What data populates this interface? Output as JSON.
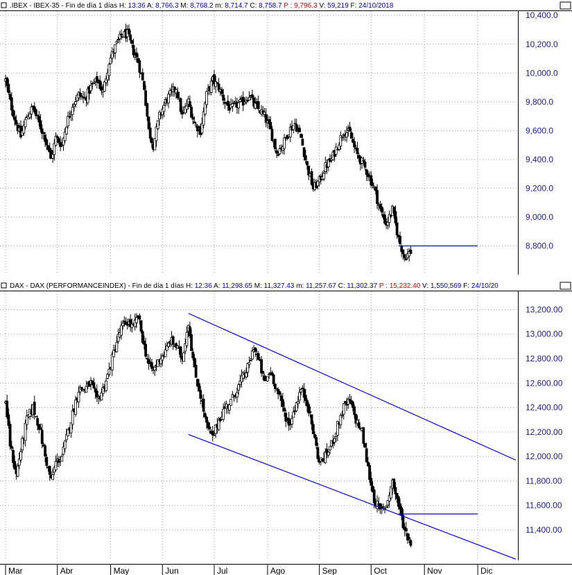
{
  "colors": {
    "background": "#ffffff",
    "candle": "#000000",
    "trendline": "#0000cc",
    "grid": "#9a9a9a",
    "axis_text": "#1a1a8a",
    "header_label": "#000000",
    "header_value": "#0000aa",
    "header_highlight": "#d40000"
  },
  "chart_data": [
    {
      "type": "candlestick",
      "name": "IBEX",
      "header": {
        "title": ".IBEX - IBEX-35 - Fin de día 1 días",
        "fields": [
          {
            "label": "H:",
            "value": "13:36"
          },
          {
            "label": "A:",
            "value": "8,766.3"
          },
          {
            "label": "M:",
            "value": "8,768.2"
          },
          {
            "label": "m:",
            "value": "8,714.7"
          },
          {
            "label": "C:",
            "value": "8,758.7"
          },
          {
            "label": "P :",
            "value": "9,796.3",
            "highlight": true
          },
          {
            "label": "V:",
            "value": "59,219"
          },
          {
            "label": "F:",
            "value": "24/10/2018"
          }
        ]
      },
      "yticks": [
        "10,400.0",
        "10,200.0",
        "10,000.0",
        "9,800.0",
        "9,600.0",
        "9,400.0",
        "9,200.0",
        "9,000.0",
        "8,800.0"
      ],
      "ylim": [
        8600,
        10430
      ],
      "grid": true,
      "close_path": [
        [
          0,
          9950
        ],
        [
          3,
          9800
        ],
        [
          7,
          9650
        ],
        [
          10,
          9560
        ],
        [
          14,
          9700
        ],
        [
          18,
          9760
        ],
        [
          22,
          9650
        ],
        [
          26,
          9550
        ],
        [
          30,
          9400
        ],
        [
          33,
          9550
        ],
        [
          37,
          9500
        ],
        [
          40,
          9650
        ],
        [
          44,
          9780
        ],
        [
          48,
          9850
        ],
        [
          52,
          9820
        ],
        [
          56,
          9900
        ],
        [
          60,
          9950
        ],
        [
          64,
          9870
        ],
        [
          68,
          10080
        ],
        [
          72,
          10180
        ],
        [
          76,
          10260
        ],
        [
          80,
          10270
        ],
        [
          84,
          10150
        ],
        [
          87,
          10080
        ],
        [
          91,
          9900
        ],
        [
          94,
          9600
        ],
        [
          97,
          9500
        ],
        [
          101,
          9700
        ],
        [
          105,
          9800
        ],
        [
          108,
          9850
        ],
        [
          112,
          9900
        ],
        [
          116,
          9700
        ],
        [
          120,
          9800
        ],
        [
          124,
          9650
        ],
        [
          128,
          9600
        ],
        [
          132,
          9850
        ],
        [
          136,
          9950
        ],
        [
          140,
          9900
        ],
        [
          144,
          9800
        ],
        [
          148,
          9750
        ],
        [
          152,
          9780
        ],
        [
          156,
          9800
        ],
        [
          160,
          9850
        ],
        [
          163,
          9780
        ],
        [
          167,
          9740
        ],
        [
          170,
          9700
        ],
        [
          174,
          9600
        ],
        [
          178,
          9450
        ],
        [
          182,
          9500
        ],
        [
          186,
          9600
        ],
        [
          190,
          9650
        ],
        [
          194,
          9550
        ],
        [
          198,
          9350
        ],
        [
          202,
          9200
        ],
        [
          206,
          9250
        ],
        [
          210,
          9350
        ],
        [
          214,
          9400
        ],
        [
          218,
          9500
        ],
        [
          222,
          9600
        ],
        [
          226,
          9580
        ],
        [
          230,
          9450
        ],
        [
          234,
          9380
        ],
        [
          238,
          9300
        ],
        [
          242,
          9200
        ],
        [
          246,
          9050
        ],
        [
          250,
          8950
        ],
        [
          254,
          9050
        ],
        [
          258,
          8850
        ],
        [
          262,
          8720
        ],
        [
          266,
          8760
        ]
      ],
      "hline": {
        "value": 8800,
        "from_x": 258,
        "to_x": 310
      },
      "trendlines": []
    },
    {
      "type": "candlestick",
      "name": "DAX",
      "header": {
        "title": "DAX - DAX (PERFORMANCEINDEX) - Fin de día 1 días",
        "fields": [
          {
            "label": "H:",
            "value": "12:36"
          },
          {
            "label": "A:",
            "value": "11,298.65"
          },
          {
            "label": "M:",
            "value": "11,327.43"
          },
          {
            "label": "m:",
            "value": "11,257.67"
          },
          {
            "label": "C:",
            "value": "11,302.37"
          },
          {
            "label": "P :",
            "value": "15,232.40",
            "highlight": true
          },
          {
            "label": "V:",
            "value": "1,550,569"
          },
          {
            "label": "F:",
            "value": "24/10/20"
          }
        ]
      },
      "yticks": [
        "13,200.00",
        "13,000.00",
        "12,800.00",
        "12,600.00",
        "12,400.00",
        "12,200.00",
        "12,000.00",
        "11,800.00",
        "11,600.00",
        "11,400.00"
      ],
      "ylim": [
        11150,
        13350
      ],
      "grid": true,
      "close_path": [
        [
          0,
          12450
        ],
        [
          3,
          12100
        ],
        [
          7,
          11850
        ],
        [
          10,
          12050
        ],
        [
          14,
          12300
        ],
        [
          18,
          12400
        ],
        [
          22,
          12250
        ],
        [
          26,
          12000
        ],
        [
          30,
          11800
        ],
        [
          33,
          11950
        ],
        [
          37,
          12000
        ],
        [
          40,
          12150
        ],
        [
          44,
          12350
        ],
        [
          48,
          12550
        ],
        [
          52,
          12550
        ],
        [
          56,
          12600
        ],
        [
          60,
          12450
        ],
        [
          64,
          12550
        ],
        [
          68,
          12700
        ],
        [
          72,
          12900
        ],
        [
          76,
          13050
        ],
        [
          80,
          13100
        ],
        [
          84,
          13050
        ],
        [
          87,
          13150
        ],
        [
          91,
          12900
        ],
        [
          94,
          12750
        ],
        [
          97,
          12700
        ],
        [
          101,
          12800
        ],
        [
          105,
          12850
        ],
        [
          108,
          12950
        ],
        [
          112,
          12900
        ],
        [
          116,
          12800
        ],
        [
          120,
          13100
        ],
        [
          124,
          12700
        ],
        [
          128,
          12500
        ],
        [
          132,
          12250
        ],
        [
          136,
          12150
        ],
        [
          140,
          12300
        ],
        [
          144,
          12400
        ],
        [
          148,
          12450
        ],
        [
          152,
          12550
        ],
        [
          156,
          12650
        ],
        [
          160,
          12750
        ],
        [
          163,
          12900
        ],
        [
          167,
          12750
        ],
        [
          170,
          12600
        ],
        [
          174,
          12700
        ],
        [
          178,
          12550
        ],
        [
          182,
          12400
        ],
        [
          186,
          12250
        ],
        [
          190,
          12400
        ],
        [
          194,
          12550
        ],
        [
          198,
          12450
        ],
        [
          202,
          12200
        ],
        [
          206,
          11950
        ],
        [
          210,
          12000
        ],
        [
          214,
          12100
        ],
        [
          218,
          12250
        ],
        [
          222,
          12400
        ],
        [
          226,
          12450
        ],
        [
          230,
          12300
        ],
        [
          234,
          12200
        ],
        [
          238,
          11900
        ],
        [
          242,
          11650
        ],
        [
          246,
          11550
        ],
        [
          250,
          11600
        ],
        [
          254,
          11800
        ],
        [
          258,
          11600
        ],
        [
          262,
          11400
        ],
        [
          266,
          11300
        ]
      ],
      "hline": {
        "value": 11530,
        "from_x": 258,
        "to_x": 310
      },
      "trendlines": [
        {
          "name": "upper-channel-line",
          "x1": 120,
          "y1": 13170,
          "x2": 335,
          "y2": 11970
        },
        {
          "name": "lower-channel-line",
          "x1": 120,
          "y1": 12180,
          "x2": 335,
          "y2": 11160
        }
      ]
    }
  ],
  "xaxis": {
    "labels": [
      "Mar",
      "Abr",
      "May",
      "Jun",
      "Jul",
      "Ago",
      "Sep",
      "Oct",
      "Nov",
      "Dic"
    ],
    "positions": [
      0,
      34,
      69,
      103,
      137,
      172,
      206,
      240,
      275,
      310
    ],
    "range": [
      0,
      330
    ]
  }
}
